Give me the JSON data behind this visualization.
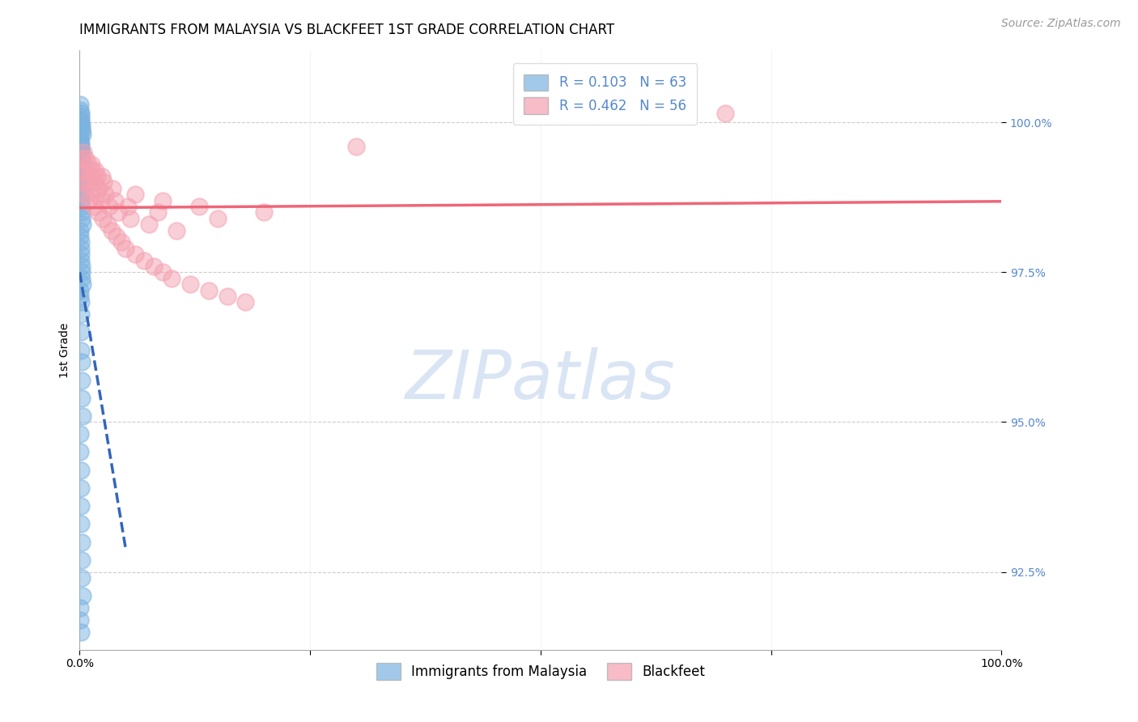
{
  "title": "IMMIGRANTS FROM MALAYSIA VS BLACKFEET 1ST GRADE CORRELATION CHART",
  "source_text": "Source: ZipAtlas.com",
  "ylabel": "1st Grade",
  "xlim": [
    0.0,
    100.0
  ],
  "ylim": [
    91.2,
    101.2
  ],
  "yticks": [
    92.5,
    95.0,
    97.5,
    100.0
  ],
  "xticks": [
    0.0,
    100.0
  ],
  "xticklabels": [
    "0.0%",
    "100.0%"
  ],
  "yticklabels": [
    "92.5%",
    "95.0%",
    "97.5%",
    "100.0%"
  ],
  "blue_color": "#7BB3E0",
  "pink_color": "#F4A0B0",
  "blue_line_color": "#3366BB",
  "pink_line_color": "#EE6677",
  "legend_r_blue": "R = 0.103",
  "legend_n_blue": "N = 63",
  "legend_r_pink": "R = 0.462",
  "legend_n_pink": "N = 56",
  "watermark": "ZIPatlas",
  "watermark_color": "#C0D4EE",
  "blue_scatter_x": [
    0.05,
    0.08,
    0.1,
    0.12,
    0.15,
    0.18,
    0.2,
    0.22,
    0.25,
    0.3,
    0.05,
    0.08,
    0.1,
    0.12,
    0.15,
    0.18,
    0.2,
    0.22,
    0.25,
    0.3,
    0.05,
    0.08,
    0.1,
    0.12,
    0.15,
    0.18,
    0.2,
    0.22,
    0.25,
    0.3,
    0.05,
    0.08,
    0.1,
    0.12,
    0.15,
    0.18,
    0.2,
    0.22,
    0.25,
    0.3,
    0.05,
    0.08,
    0.1,
    0.12,
    0.15,
    0.18,
    0.2,
    0.22,
    0.25,
    0.3,
    0.05,
    0.08,
    0.1,
    0.12,
    0.15,
    0.18,
    0.2,
    0.22,
    0.25,
    0.3,
    0.05,
    0.08,
    0.1
  ],
  "blue_scatter_y": [
    100.3,
    100.2,
    100.15,
    100.1,
    100.05,
    100.0,
    99.95,
    99.9,
    99.85,
    99.8,
    99.75,
    99.7,
    99.65,
    99.6,
    99.55,
    99.5,
    99.45,
    99.4,
    99.35,
    99.3,
    99.2,
    99.1,
    99.0,
    98.9,
    98.8,
    98.7,
    98.6,
    98.5,
    98.4,
    98.3,
    98.2,
    98.1,
    98.0,
    97.9,
    97.8,
    97.7,
    97.6,
    97.5,
    97.4,
    97.3,
    97.2,
    97.1,
    97.0,
    96.8,
    96.5,
    96.2,
    96.0,
    95.7,
    95.4,
    95.1,
    94.8,
    94.5,
    94.2,
    93.9,
    93.6,
    93.3,
    93.0,
    92.7,
    92.4,
    92.1,
    91.9,
    91.7,
    91.5
  ],
  "pink_scatter_x": [
    0.1,
    0.5,
    1.0,
    1.5,
    2.0,
    2.5,
    3.0,
    3.5,
    4.0,
    4.5,
    5.0,
    6.0,
    7.0,
    8.0,
    9.0,
    10.0,
    12.0,
    14.0,
    16.0,
    18.0,
    0.3,
    0.8,
    1.2,
    1.8,
    2.3,
    3.2,
    4.2,
    5.5,
    7.5,
    10.5,
    0.2,
    0.6,
    1.1,
    1.6,
    2.1,
    2.8,
    3.8,
    5.2,
    8.5,
    15.0,
    0.4,
    0.9,
    1.4,
    1.9,
    2.6,
    3.6,
    6.0,
    9.0,
    13.0,
    20.0,
    70.0,
    0.7,
    1.3,
    1.7,
    2.4,
    30.0
  ],
  "pink_scatter_y": [
    99.0,
    98.8,
    98.7,
    98.6,
    98.5,
    98.4,
    98.3,
    98.2,
    98.1,
    98.0,
    97.9,
    97.8,
    97.7,
    97.6,
    97.5,
    97.4,
    97.3,
    97.2,
    97.1,
    97.0,
    99.2,
    99.0,
    98.9,
    98.8,
    98.7,
    98.6,
    98.5,
    98.4,
    98.3,
    98.2,
    99.4,
    99.2,
    99.1,
    99.0,
    98.9,
    98.8,
    98.7,
    98.6,
    98.5,
    98.4,
    99.5,
    99.3,
    99.2,
    99.1,
    99.0,
    98.9,
    98.8,
    98.7,
    98.6,
    98.5,
    100.15,
    99.4,
    99.3,
    99.2,
    99.1,
    99.6
  ],
  "title_fontsize": 12,
  "axis_label_fontsize": 10,
  "tick_fontsize": 10,
  "legend_fontsize": 12,
  "source_fontsize": 10,
  "background_color": "#FFFFFF",
  "grid_color": "#CCCCCC",
  "tick_color": "#5588CC"
}
